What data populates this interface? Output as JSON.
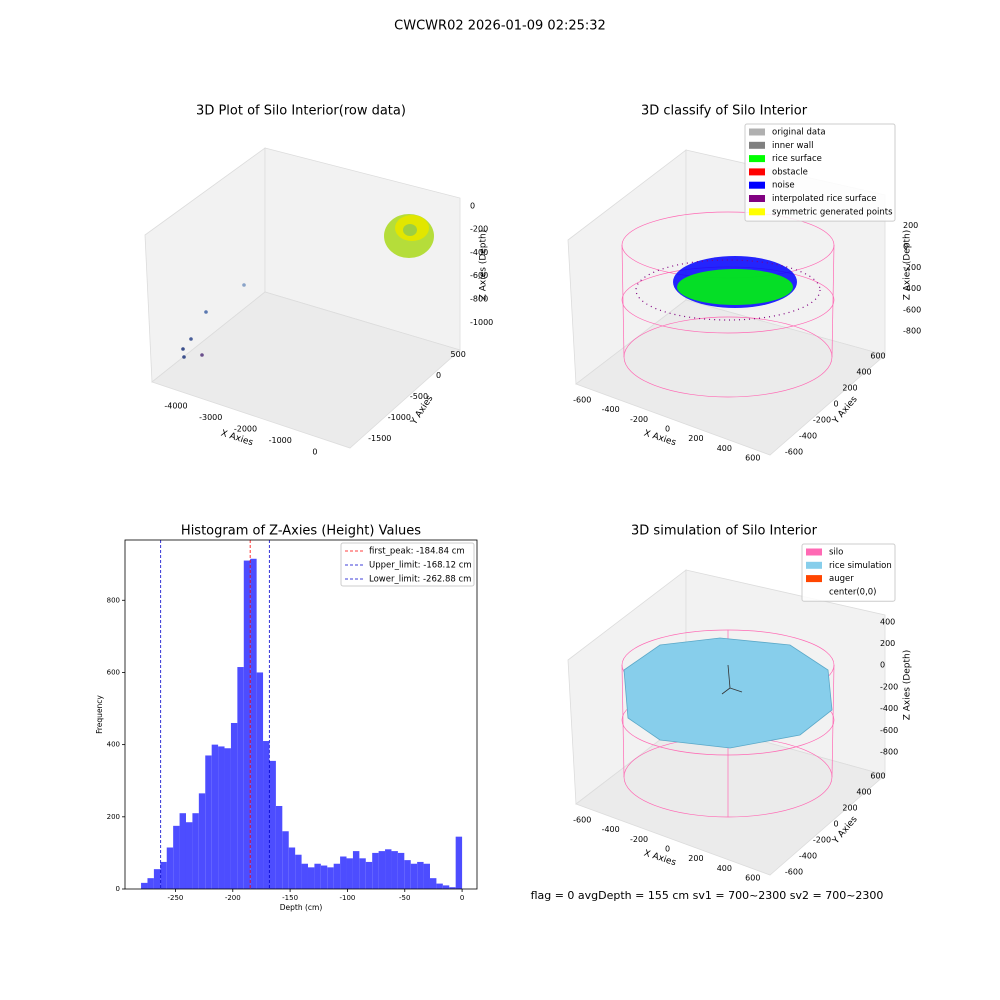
{
  "title": "CWCWR02 2026-01-09 02:25:32",
  "footer": "flag = 0    avgDepth = 155 cm  sv1 = 700~2300  sv2 = 700~2300",
  "chart_data": [
    {
      "type": "scatter3d",
      "title": "3D Plot of Silo Interior(row data)",
      "xlabel": "X Axies",
      "ylabel": "Y Axies",
      "zlabel": "Z Axies (Depth)",
      "xlim": [
        -4500,
        300
      ],
      "xticks": [
        -4000,
        -3000,
        -2000,
        -1000,
        0
      ],
      "ylim": [
        -1800,
        700
      ],
      "yticks": [
        -1500,
        -1000,
        -500,
        0,
        500
      ],
      "zlim": [
        -1100,
        50
      ],
      "zticks": [
        -1000,
        -800,
        -600,
        -400,
        -200,
        0
      ]
    },
    {
      "type": "scatter3d",
      "title": "3D classify of Silo Interior",
      "xlabel": "X Axies",
      "ylabel": "Y Axies",
      "zlabel": "Z Axies (Depth)",
      "xlim": [
        -700,
        700
      ],
      "xticks": [
        -600,
        -400,
        -200,
        0,
        200,
        400,
        600
      ],
      "ylim": [
        -700,
        700
      ],
      "yticks": [
        -600,
        -400,
        -200,
        0,
        200,
        400,
        600
      ],
      "zlim": [
        -900,
        300
      ],
      "zticks": [
        -800,
        -600,
        -400,
        -200,
        0,
        200
      ],
      "series": [
        {
          "name": "original data",
          "color": "#b0b0b0"
        },
        {
          "name": "inner wall",
          "color": "#808080"
        },
        {
          "name": "rice surface",
          "color": "#00ff00"
        },
        {
          "name": "obstacle",
          "color": "#ff0000"
        },
        {
          "name": "noise",
          "color": "#0000ff"
        },
        {
          "name": "interpolated rice surface",
          "color": "#800080"
        },
        {
          "name": "symmetric generated points",
          "color": "#ffff00"
        }
      ]
    },
    {
      "type": "histogram",
      "title": "Histogram of Z-Axies (Height) Values",
      "xlabel": "Depth (cm)",
      "ylabel": "Frequency",
      "color": "#4d4dff",
      "bins": [
        -280,
        -274.4,
        -268.8,
        -263.2,
        -257.6,
        -252,
        -246.4,
        -240.8,
        -235.2,
        -229.6,
        -224,
        -218.4,
        -212.8,
        -207.2,
        -201.6,
        -196,
        -190.4,
        -184.8,
        -179.2,
        -173.6,
        -168,
        -162.4,
        -156.8,
        -151.2,
        -145.6,
        -140,
        -134.4,
        -128.8,
        -123.2,
        -117.6,
        -112,
        -106.4,
        -100.8,
        -95.2,
        -89.6,
        -84,
        -78.4,
        -72.8,
        -67.2,
        -61.6,
        -56,
        -50.4,
        -44.8,
        -39.2,
        -33.6,
        -28,
        -22.4,
        -16.8,
        -11.2,
        -5.6,
        0
      ],
      "values": [
        17,
        30,
        55,
        75,
        115,
        175,
        210,
        185,
        210,
        265,
        370,
        400,
        395,
        390,
        460,
        615,
        910,
        915,
        600,
        410,
        355,
        230,
        160,
        115,
        95,
        70,
        60,
        70,
        65,
        60,
        70,
        90,
        85,
        105,
        85,
        75,
        100,
        105,
        110,
        105,
        100,
        80,
        70,
        75,
        70,
        30,
        15,
        10,
        5,
        145
      ],
      "xlim": [
        -294,
        13
      ],
      "xticks": [
        -250,
        -200,
        -150,
        -100,
        -50,
        0
      ],
      "ylim": [
        0,
        967
      ],
      "yticks": [
        0,
        200,
        400,
        600,
        800
      ],
      "lines": [
        {
          "name": "first_peak: -184.84 cm",
          "value": -184.84,
          "color": "#ff0000"
        },
        {
          "name": "Upper_limit: -168.12 cm",
          "value": -168.12,
          "color": "#0000cc"
        },
        {
          "name": "Lower_limit: -262.88 cm",
          "value": -262.88,
          "color": "#0000cc"
        }
      ]
    },
    {
      "type": "surface3d",
      "title": "3D simulation of Silo Interior",
      "xlabel": "X Axies",
      "ylabel": "Y Axies",
      "zlabel": "Z Axies (Depth)",
      "xlim": [
        -700,
        700
      ],
      "xticks": [
        -600,
        -400,
        -200,
        0,
        200,
        400,
        600
      ],
      "ylim": [
        -700,
        700
      ],
      "yticks": [
        -600,
        -400,
        -200,
        0,
        200,
        400,
        600
      ],
      "zlim": [
        -900,
        500
      ],
      "zticks": [
        -800,
        -600,
        -400,
        -200,
        0,
        200,
        400
      ],
      "series": [
        {
          "name": "silo",
          "color": "#ff69b4"
        },
        {
          "name": "rice simulation",
          "color": "#87ceeb"
        },
        {
          "name": "auger",
          "color": "#ff4500"
        },
        {
          "name": "center(0,0)",
          "color": "#ffffff"
        }
      ]
    }
  ]
}
